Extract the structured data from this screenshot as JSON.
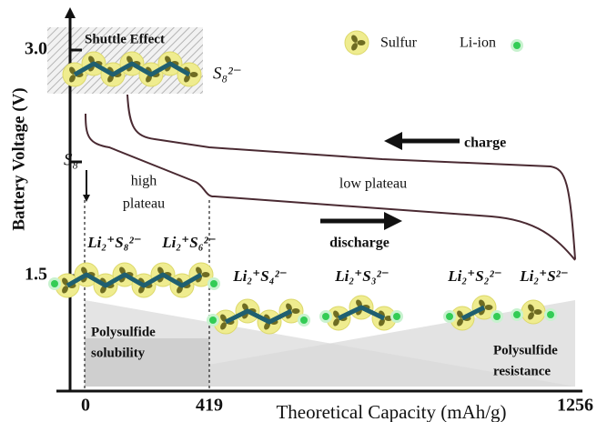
{
  "shuttle": {
    "title": "Shuttle Effect",
    "species": "S₈²⁻"
  },
  "legend": {
    "sulfur": "Sulfur",
    "li_ion": "Li-ion"
  },
  "y_axis": {
    "label": "Battery Voltage (V)",
    "ticks": [
      "3.0",
      "1.5"
    ]
  },
  "x_axis": {
    "label": "Theoretical Capacity (mAh/g)",
    "ticks": [
      "0",
      "419",
      "1256"
    ]
  },
  "annotations": {
    "s8": "S₈",
    "high_plateau": [
      "high",
      "plateau"
    ],
    "low_plateau": "low plateau",
    "charge": "charge",
    "discharge": "discharge"
  },
  "species": [
    "Li₂⁺S₈²⁻",
    "Li₂⁺S₆²⁻",
    "Li₂⁺S₄²⁻",
    "Li₂⁺S₃²⁻",
    "Li₂⁺S₂²⁻",
    "Li₂⁺S²⁻"
  ],
  "regions": {
    "solubility": [
      "Polysulfide",
      "solubility"
    ],
    "resistance": [
      "Polysulfide",
      "resistance"
    ]
  }
}
